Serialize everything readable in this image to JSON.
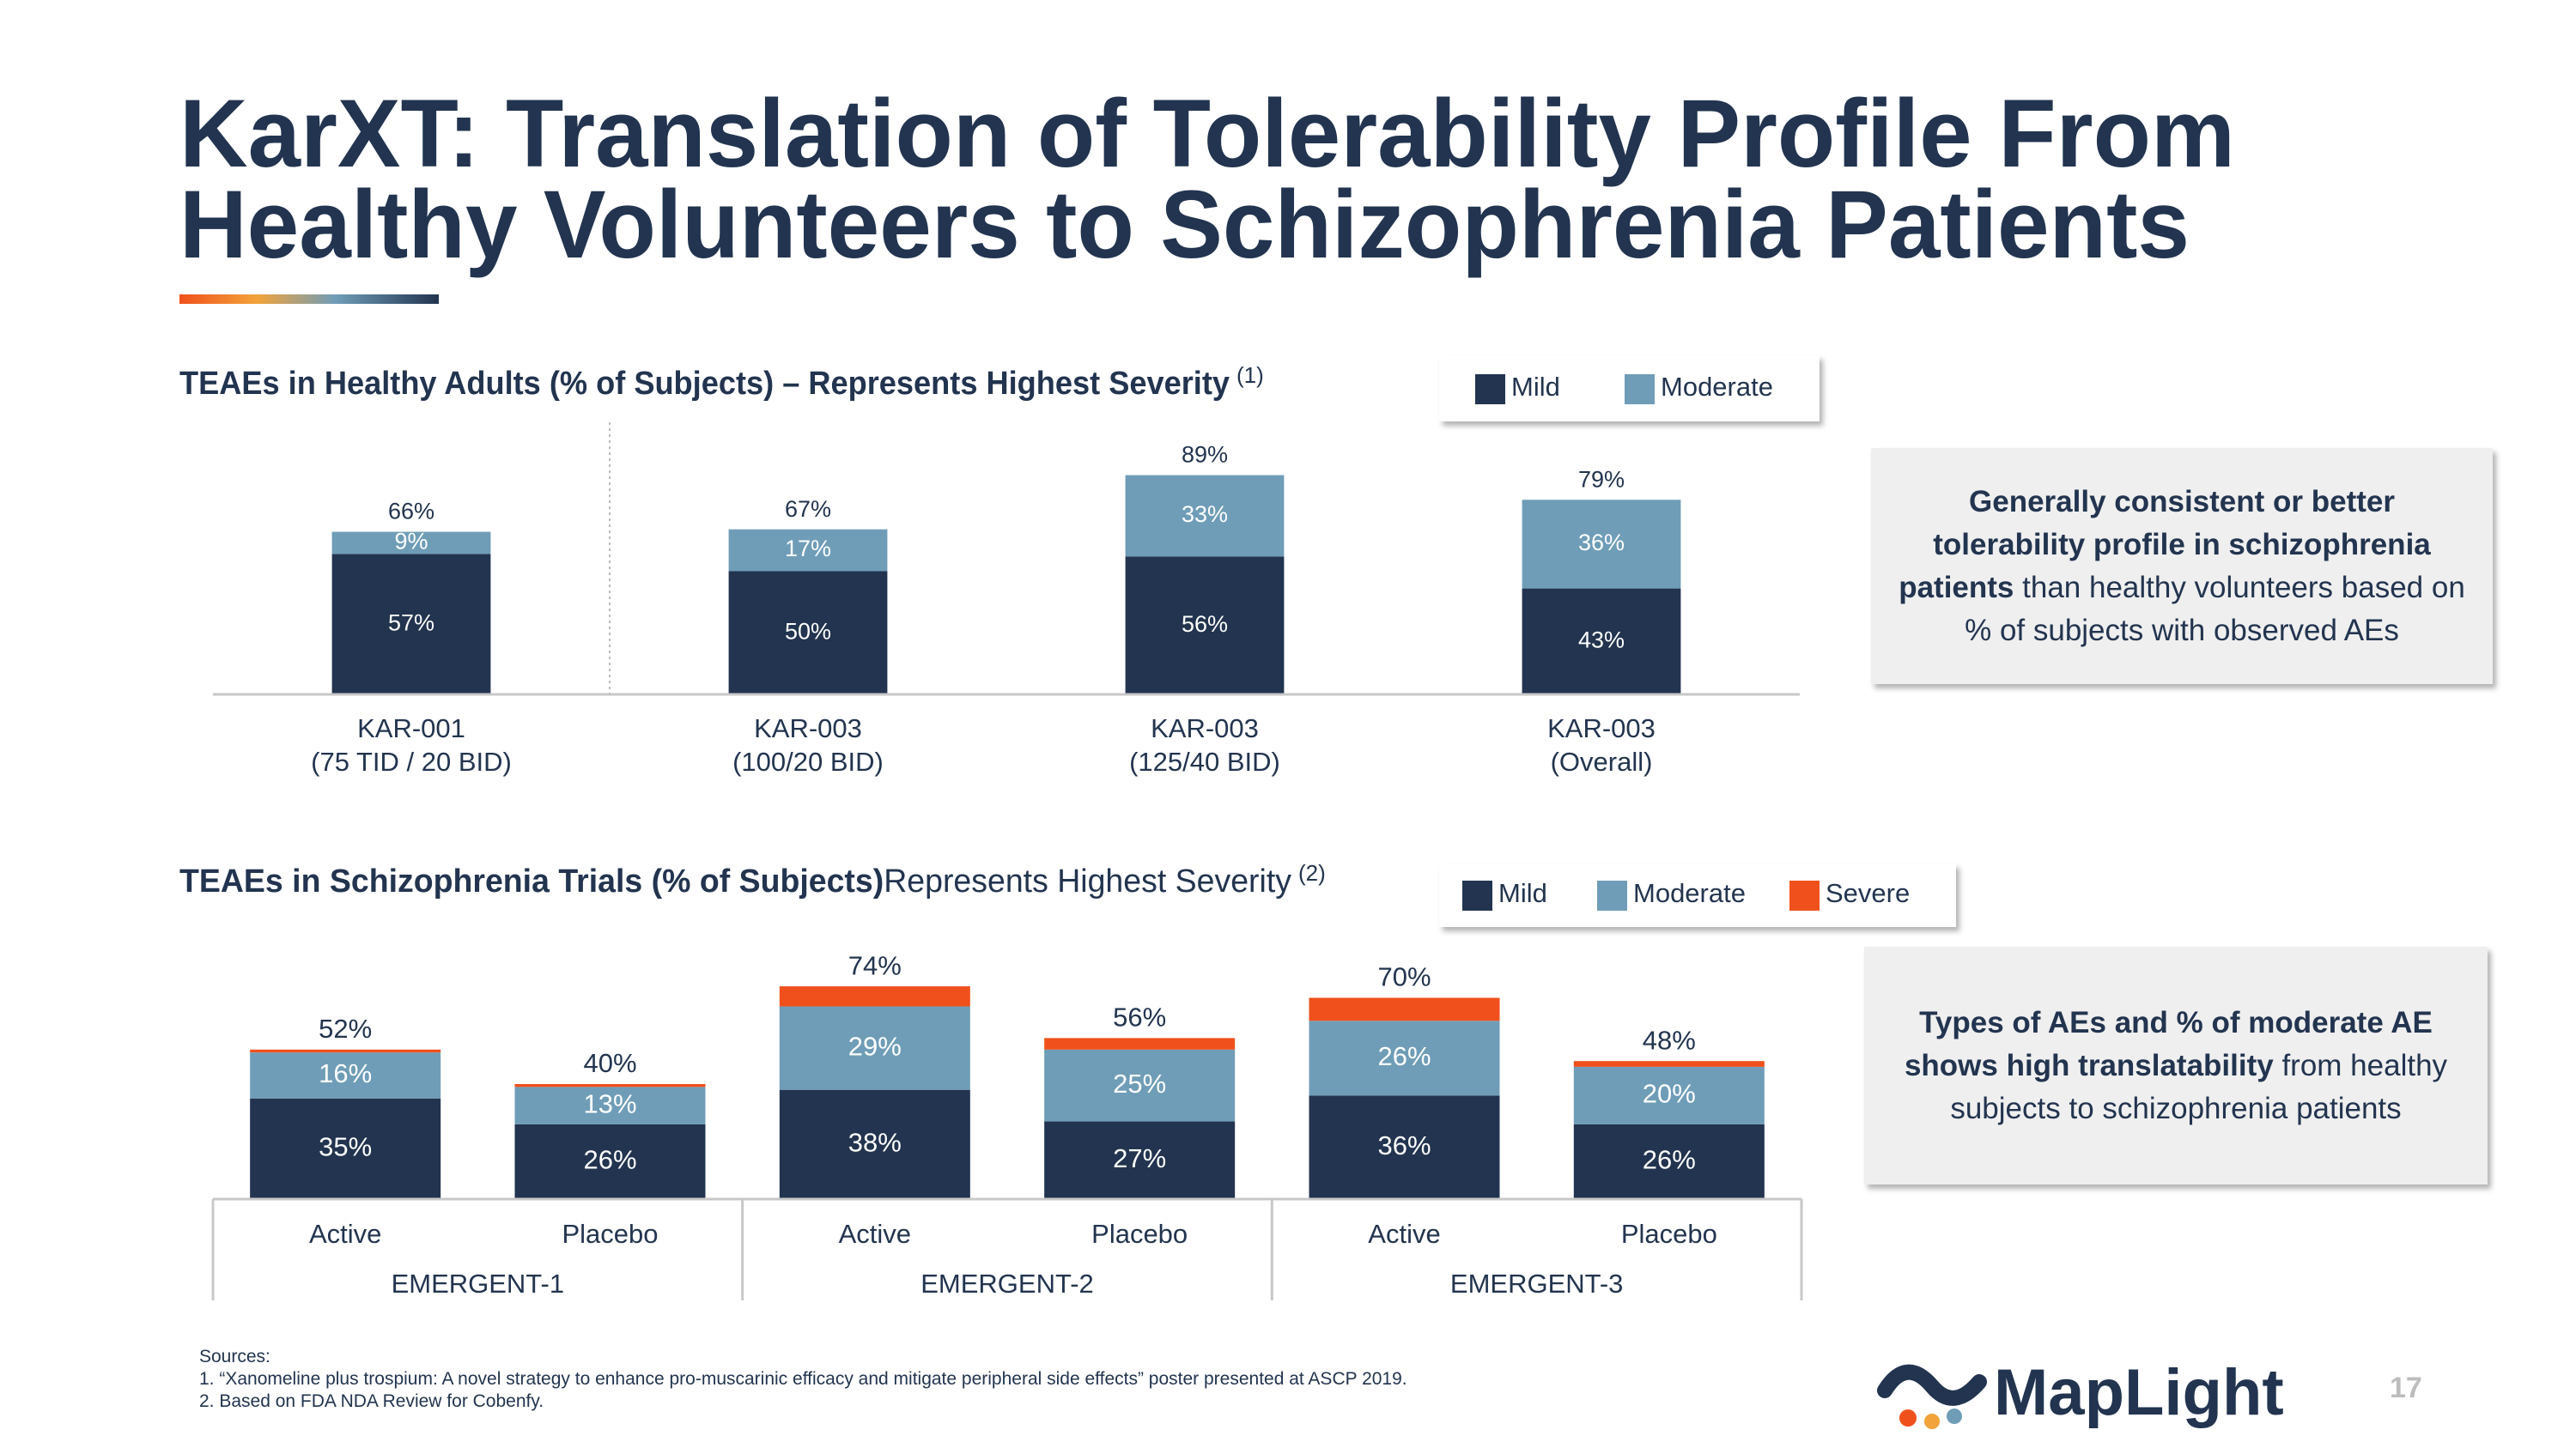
{
  "header": {
    "title": [
      "KarXT: Translation of Tolerability Profile From",
      "Healthy Volunteers to Schizophrenia Patients"
    ]
  },
  "chart_data": [
    {
      "type": "bar",
      "stacked": true,
      "subtitle": "TEAEs in Healthy Adults (% of Subjects) – Represents Highest Severity",
      "subtitle_note": "(1)",
      "categories": [
        [
          "KAR-001",
          "(75 TID / 20 BID)"
        ],
        [
          "KAR-003",
          "(100/20 BID)"
        ],
        [
          "KAR-003",
          "(125/40 BID)"
        ],
        [
          "KAR-003",
          "(Overall)"
        ]
      ],
      "series": [
        {
          "name": "Mild",
          "color": "#22344f",
          "values": [
            57,
            50,
            56,
            43
          ],
          "value_labels": [
            "57%",
            "50%",
            "56%",
            "43%"
          ]
        },
        {
          "name": "Moderate",
          "color": "#6f9db8",
          "values": [
            9,
            17,
            33,
            36
          ],
          "value_labels": [
            "9%",
            "17%",
            "33%",
            "36%"
          ]
        }
      ],
      "totals": [
        66,
        67,
        89,
        79
      ],
      "total_labels": [
        "66%",
        "67%",
        "89%",
        "79%"
      ],
      "ylim": [
        0,
        100
      ]
    },
    {
      "type": "bar",
      "stacked": true,
      "subtitle": [
        "TEAEs in Schizophrenia Trials (% of Subjects)",
        "Represents Highest Severity"
      ],
      "subtitle_note": "(2)",
      "categories": [
        "Active",
        "Placebo",
        "Active",
        "Placebo",
        "Active",
        "Placebo"
      ],
      "groups": [
        "EMERGENT-1",
        "EMERGENT-2",
        "EMERGENT-3"
      ],
      "series": [
        {
          "name": "Mild",
          "color": "#22344f",
          "values": [
            35,
            26,
            38,
            27,
            36,
            26
          ],
          "value_labels": [
            "35%",
            "26%",
            "38%",
            "27%",
            "36%",
            "26%"
          ]
        },
        {
          "name": "Moderate",
          "color": "#6f9db8",
          "values": [
            16,
            13,
            29,
            25,
            26,
            20
          ],
          "value_labels": [
            "16%",
            "13%",
            "29%",
            "25%",
            "26%",
            "20%"
          ]
        },
        {
          "name": "Severe",
          "color": "#f0511c",
          "values": [
            1,
            1,
            7,
            4,
            8,
            2
          ]
        }
      ],
      "totals": [
        52,
        40,
        74,
        56,
        70,
        48
      ],
      "total_labels": [
        "52%",
        "40%",
        "74%",
        "56%",
        "70%",
        "48%"
      ],
      "ylim": [
        0,
        100
      ]
    }
  ],
  "callouts": [
    {
      "bold": "Generally consistent or better tolerability profile in schizophrenia patients",
      "text": " than healthy volunteers based on % of subjects with observed AEs"
    },
    {
      "bold": "Types of AEs and % of moderate AE shows high translatability",
      "text": " from healthy subjects to schizophrenia patients"
    }
  ],
  "sources": {
    "heading": "Sources:",
    "items": [
      "1.  “Xanomeline plus trospium: A novel strategy to enhance pro-muscarinic efficacy and mitigate peripheral side effects” poster presented at ASCP 2019.",
      "2.  Based on FDA NDA Review for Cobenfy."
    ]
  },
  "logo": "MapLight",
  "page_number": "17"
}
